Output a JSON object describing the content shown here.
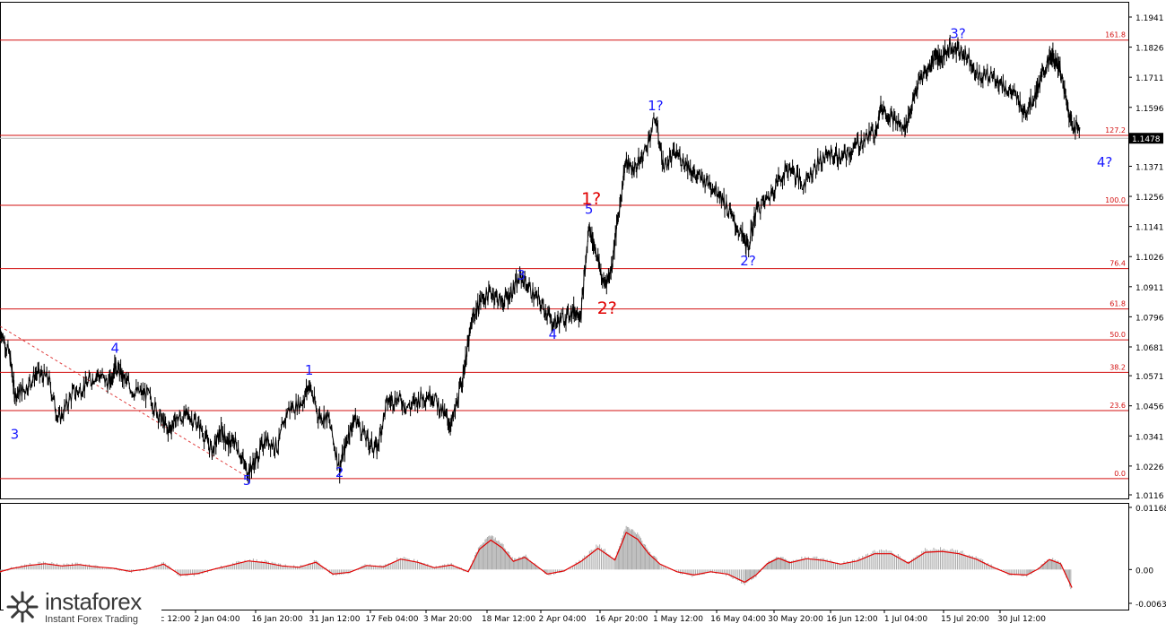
{
  "chart_data": [
    {
      "type": "line",
      "title": "",
      "y_ticks": [
        "1.1941",
        "1.1826",
        "1.1711",
        "1.1596",
        "1.1478",
        "1.1371",
        "1.1256",
        "1.1141",
        "1.1026",
        "1.0911",
        "1.0796",
        "1.0681",
        "1.0571",
        "1.0456",
        "1.0341",
        "1.0226",
        "1.0116"
      ],
      "ylim": [
        1.0116,
        1.1941
      ],
      "current_price": "1.1478",
      "x_ticks": [
        "16 Dec 12:00",
        "2 Jan 04:00",
        "16 Jan 20:00",
        "31 Jan 12:00",
        "17 Feb 04:00",
        "3 Mar 20:00",
        "18 Mar 12:00",
        "2 Apr 04:00",
        "16 Apr 20:00",
        "1 May 12:00",
        "16 May 04:00",
        "30 May 20:00",
        "16 Jun 12:00",
        "1 Jul 04:00",
        "15 Jul 20:00",
        "30 Jul 12:00"
      ],
      "fib_levels": [
        {
          "label": "161.8",
          "value": 1.1853
        },
        {
          "label": "127.2",
          "value": 1.1489
        },
        {
          "label": "100.0",
          "value": 1.1222
        },
        {
          "label": "76.4",
          "value": 1.098
        },
        {
          "label": "61.8",
          "value": 1.0826
        },
        {
          "label": "50.0",
          "value": 1.0708
        },
        {
          "label": "38.2",
          "value": 1.0584
        },
        {
          "label": "23.6",
          "value": 1.0438
        },
        {
          "label": "0.0",
          "value": 1.0178
        }
      ],
      "wave_labels": [
        {
          "text": "3",
          "x": 1.3,
          "y": 1.033,
          "color": "#1a1aff",
          "size": "normal"
        },
        {
          "text": "4",
          "x": 10.2,
          "y": 1.0658,
          "color": "#1a1aff",
          "size": "normal"
        },
        {
          "text": "5",
          "x": 21.9,
          "y": 1.0153,
          "color": "#1a1aff",
          "size": "normal"
        },
        {
          "text": "1",
          "x": 27.4,
          "y": 1.0575,
          "color": "#1a1aff",
          "size": "normal"
        },
        {
          "text": "2",
          "x": 30.1,
          "y": 1.0185,
          "color": "#1a1aff",
          "size": "normal"
        },
        {
          "text": "3",
          "x": 46.2,
          "y": 1.0937,
          "color": "#1a1aff",
          "size": "normal"
        },
        {
          "text": "4",
          "x": 49.0,
          "y": 1.0712,
          "color": "#1a1aff",
          "size": "normal"
        },
        {
          "text": "5",
          "x": 52.2,
          "y": 1.119,
          "color": "#1a1aff",
          "size": "normal"
        },
        {
          "text": "1?",
          "x": 52.4,
          "y": 1.1225,
          "color": "#e00000",
          "size": "large"
        },
        {
          "text": "2?",
          "x": 53.8,
          "y": 1.0808,
          "color": "#e00000",
          "size": "large"
        },
        {
          "text": "1?",
          "x": 58.1,
          "y": 1.1585,
          "color": "#1a1aff",
          "size": "normal"
        },
        {
          "text": "2?",
          "x": 66.3,
          "y": 1.0993,
          "color": "#1a1aff",
          "size": "normal"
        },
        {
          "text": "3?",
          "x": 84.9,
          "y": 1.186,
          "color": "#1a1aff",
          "size": "normal"
        },
        {
          "text": "4?",
          "x": 97.9,
          "y": 1.137,
          "color": "#1a1aff",
          "size": "normal"
        }
      ],
      "price_series": {
        "x": [
          0,
          0.9,
          1.3,
          2.2,
          3.2,
          4.3,
          5.2,
          6.4,
          7.5,
          8.6,
          9.7,
          10.2,
          10.9,
          11.9,
          13.1,
          14.1,
          14.9,
          15.6,
          16.7,
          17.7,
          18.8,
          19.6,
          20.3,
          20.9,
          21.9,
          22.7,
          23.5,
          24.6,
          25.5,
          26.8,
          27.4,
          28.2,
          29.1,
          30.1,
          30.9,
          31.5,
          32.6,
          33.4,
          34.3,
          35.2,
          36.3,
          37.3,
          38.3,
          39.4,
          40.0,
          40.8,
          41.3,
          41.9,
          42.6,
          43.6,
          44.5,
          45.3,
          46.2,
          47.3,
          48.3,
          49.0,
          49.9,
          50.8,
          51.5,
          52.2,
          52.8,
          53.5,
          54.1,
          54.8,
          55.4,
          56.2,
          57.0,
          58.1,
          58.8,
          59.9,
          60.9,
          61.7,
          62.8,
          63.8,
          64.8,
          65.8,
          66.3,
          67.0,
          68.1,
          69.0,
          70.0,
          71.1,
          72.4,
          73.5,
          74.6,
          75.4,
          76.4,
          77.5,
          78.1,
          79.0,
          80.1,
          80.8,
          81.5,
          82.4,
          82.9,
          83.5,
          84.2,
          84.9,
          85.8,
          86.8,
          87.9,
          88.9,
          89.9,
          90.9,
          91.8,
          92.4,
          93.0,
          93.4,
          93.9,
          94.6,
          95.0,
          95.7
        ],
        "y": [
          1.0755,
          1.064,
          1.05,
          1.052,
          1.058,
          1.056,
          1.04,
          1.05,
          1.053,
          1.058,
          1.054,
          1.0615,
          1.0565,
          1.051,
          1.05,
          1.042,
          1.036,
          1.0405,
          1.042,
          1.038,
          1.028,
          1.036,
          1.031,
          1.032,
          1.02,
          1.025,
          1.033,
          1.03,
          1.044,
          1.047,
          1.054,
          1.042,
          1.041,
          1.0215,
          1.035,
          1.041,
          1.032,
          1.029,
          1.047,
          1.0485,
          1.045,
          1.049,
          1.05,
          1.042,
          1.038,
          1.052,
          1.064,
          1.079,
          1.086,
          1.089,
          1.085,
          1.089,
          1.095,
          1.088,
          1.0825,
          1.077,
          1.079,
          1.082,
          1.081,
          1.114,
          1.105,
          1.092,
          1.096,
          1.118,
          1.138,
          1.136,
          1.141,
          1.1555,
          1.137,
          1.142,
          1.138,
          1.133,
          1.131,
          1.127,
          1.118,
          1.11,
          1.106,
          1.12,
          1.125,
          1.132,
          1.137,
          1.13,
          1.138,
          1.142,
          1.14,
          1.143,
          1.147,
          1.15,
          1.16,
          1.156,
          1.151,
          1.16,
          1.17,
          1.175,
          1.18,
          1.178,
          1.183,
          1.1815,
          1.179,
          1.171,
          1.172,
          1.168,
          1.164,
          1.158,
          1.165,
          1.172,
          1.178,
          1.179,
          1.175,
          1.16,
          1.153,
          1.152
        ]
      }
    },
    {
      "type": "area",
      "title": "",
      "y_ticks": [
        "0.01168",
        "0.00",
        "-0.00635"
      ],
      "ylim": [
        -0.00635,
        0.01168
      ],
      "histogram_color": "#a9a9a9",
      "signal_color": "#e00000",
      "series": {
        "x": [
          0,
          1,
          2.5,
          4,
          5.5,
          7,
          8.5,
          10,
          11.5,
          13,
          14.5,
          16,
          17.5,
          19,
          20.5,
          22,
          23.5,
          25,
          26.5,
          28,
          29.5,
          31,
          32.5,
          34,
          35.5,
          37,
          38.5,
          40,
          41.5,
          42.5,
          43.5,
          44.5,
          45.5,
          46.5,
          47.5,
          48.5,
          50,
          51.5,
          53,
          54.5,
          55.5,
          56.5,
          57.5,
          58.5,
          60,
          61.5,
          63,
          64.5,
          66,
          67,
          68,
          69,
          70,
          71.5,
          73,
          74.5,
          76,
          77.5,
          79,
          80.5,
          82,
          83.5,
          85,
          86.5,
          88,
          89.5,
          91,
          92,
          93,
          94,
          95
        ],
        "values": [
          -0.0005,
          0.0002,
          0.0009,
          0.0013,
          0.0008,
          0.0011,
          0.0006,
          0.0003,
          -0.0004,
          0.0001,
          0.0012,
          -0.0012,
          -0.0009,
          0.0001,
          0.001,
          0.0019,
          0.0015,
          0.0008,
          0.0005,
          0.0016,
          -0.001,
          -0.0006,
          0.0009,
          0.0006,
          0.0023,
          0.0016,
          0.0004,
          0.001,
          -0.0005,
          0.0045,
          0.0065,
          0.0048,
          0.0018,
          0.0027,
          0.0009,
          -0.001,
          -0.0003,
          0.0018,
          0.0047,
          0.0021,
          0.0082,
          0.0067,
          0.0035,
          0.0012,
          -0.0005,
          -0.0012,
          -0.0005,
          -0.001,
          -0.0028,
          -0.0012,
          0.0013,
          0.0025,
          0.0015,
          0.0024,
          0.002,
          0.0012,
          0.0019,
          0.0035,
          0.0035,
          0.0014,
          0.0038,
          0.004,
          0.0035,
          0.0023,
          0.0005,
          -0.001,
          -0.0012,
          0.0001,
          0.0022,
          0.0013,
          -0.004
        ]
      }
    }
  ],
  "watermark": {
    "brand": "instaforex",
    "tagline": "Instant Forex Trading"
  }
}
